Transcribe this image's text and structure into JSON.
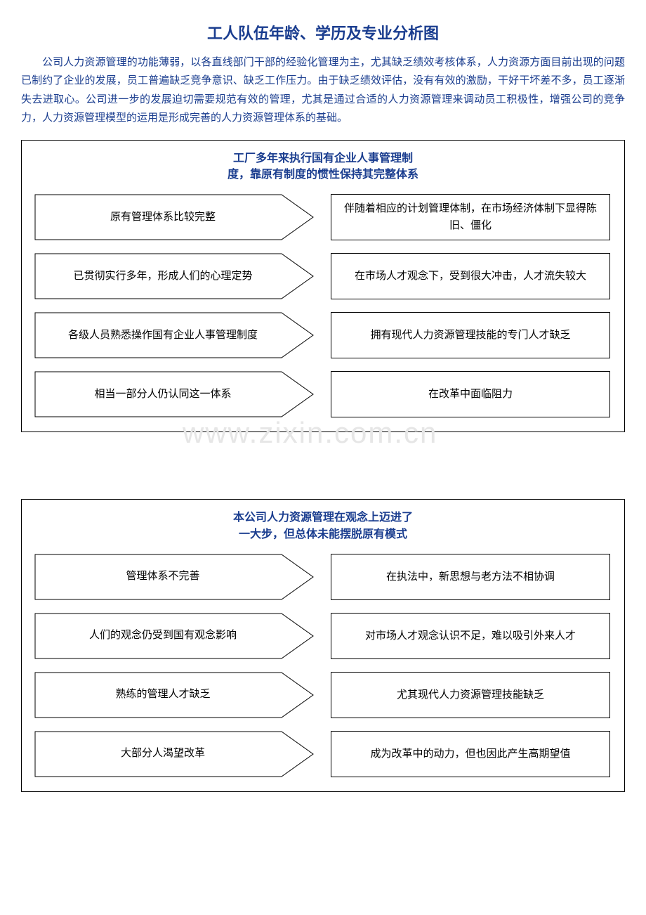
{
  "title": "工人队伍年龄、学历及专业分析图",
  "intro": "公司人力资源管理的功能薄弱，以各直线部门干部的经验化管理为主，尤其缺乏绩效考核体系，人力资源方面目前出现的问题已制约了企业的发展，员工普遍缺乏竞争意识、缺乏工作压力。由于缺乏绩效评估，没有有效的激励，干好干坏差不多，员工逐渐失去进取心。公司进一步的发展迫切需要规范有效的管理，尤其是通过合适的人力资源管理来调动员工积极性，增强公司的竞争力，人力资源管理模型的运用是形成完善的人力资源管理体系的基础。",
  "watermark": "www.zixin.com.cn",
  "colors": {
    "accent": "#1a3d8f",
    "stroke": "#000000",
    "background": "#ffffff",
    "watermark": "#e6e6e6"
  },
  "sections": [
    {
      "title_l1": "工厂多年来执行国有企业人事管理制",
      "title_l2": "度，靠原有制度的惯性保持其完整体系",
      "rows": [
        {
          "left": "原有管理体系比较完整",
          "right": "伴随着相应的计划管理体制，在市场经济体制下显得陈旧、僵化"
        },
        {
          "left": "已贯彻实行多年，形成人们的心理定势",
          "right": "在市场人才观念下，受到很大冲击，人才流失较大"
        },
        {
          "left": "各级人员熟悉操作国有企业人事管理制度",
          "right": "拥有现代人力资源管理技能的专门人才缺乏"
        },
        {
          "left": "相当一部分人仍认同这一体系",
          "right": "在改革中面临阻力"
        }
      ]
    },
    {
      "title_l1": "本公司人力资源管理在观念上迈进了",
      "title_l2": "一大步，但总体未能摆脱原有模式",
      "rows": [
        {
          "left": "管理体系不完善",
          "right": "在执法中，新思想与老方法不相协调"
        },
        {
          "left": "人们的观念仍受到国有观念影响",
          "right": "对市场人才观念认识不足，难以吸引外来人才"
        },
        {
          "left": "熟练的管理人才缺乏",
          "right": "尤其现代人力资源管理技能缺乏"
        },
        {
          "left": "大部分人渴望改革",
          "right": "成为改革中的动力，但也因此产生高期望值"
        }
      ]
    }
  ]
}
